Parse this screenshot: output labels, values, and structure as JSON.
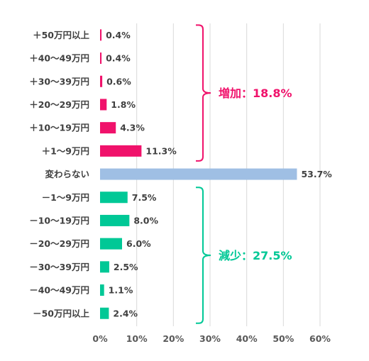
{
  "colors": {
    "increase": "#f0126b",
    "unchanged": "#9fbfe4",
    "decrease": "#00c896",
    "axis_text": "#595959",
    "label_text": "#404040",
    "grid": "#d9d9d9"
  },
  "chart_data": {
    "type": "bar",
    "orientation": "horizontal",
    "title": "",
    "xlabel": "",
    "ylabel": "",
    "xlim": [
      0,
      60
    ],
    "x_ticks": [
      0,
      10,
      20,
      30,
      40,
      50,
      60
    ],
    "x_tick_labels": [
      "0%",
      "10%",
      "20%",
      "30%",
      "40%",
      "50%",
      "60%"
    ],
    "grid": true,
    "categories": [
      "＋50万円以上",
      "＋40〜49万円",
      "＋30〜39万円",
      "＋20〜29万円",
      "＋10〜19万円",
      "＋1〜9万円",
      "変わらない",
      "－1〜9万円",
      "－10〜19万円",
      "－20〜29万円",
      "－30〜39万円",
      "－40〜49万円",
      "－50万円以上"
    ],
    "values": [
      0.4,
      0.4,
      0.6,
      1.8,
      4.3,
      11.3,
      53.7,
      7.5,
      8.0,
      6.0,
      2.5,
      1.1,
      2.4
    ],
    "value_labels": [
      "0.4%",
      "0.4%",
      "0.6%",
      "1.8%",
      "4.3%",
      "11.3%",
      "53.7%",
      "7.5%",
      "8.0%",
      "6.0%",
      "2.5%",
      "1.1%",
      "2.4%"
    ],
    "groups": [
      "increase",
      "increase",
      "increase",
      "increase",
      "increase",
      "increase",
      "unchanged",
      "decrease",
      "decrease",
      "decrease",
      "decrease",
      "decrease",
      "decrease"
    ],
    "annotations": [
      {
        "text": "増加：18.8%",
        "group": "increase",
        "from": 0,
        "to": 5
      },
      {
        "text": "減少：27.5%",
        "group": "decrease",
        "from": 7,
        "to": 12
      }
    ]
  }
}
